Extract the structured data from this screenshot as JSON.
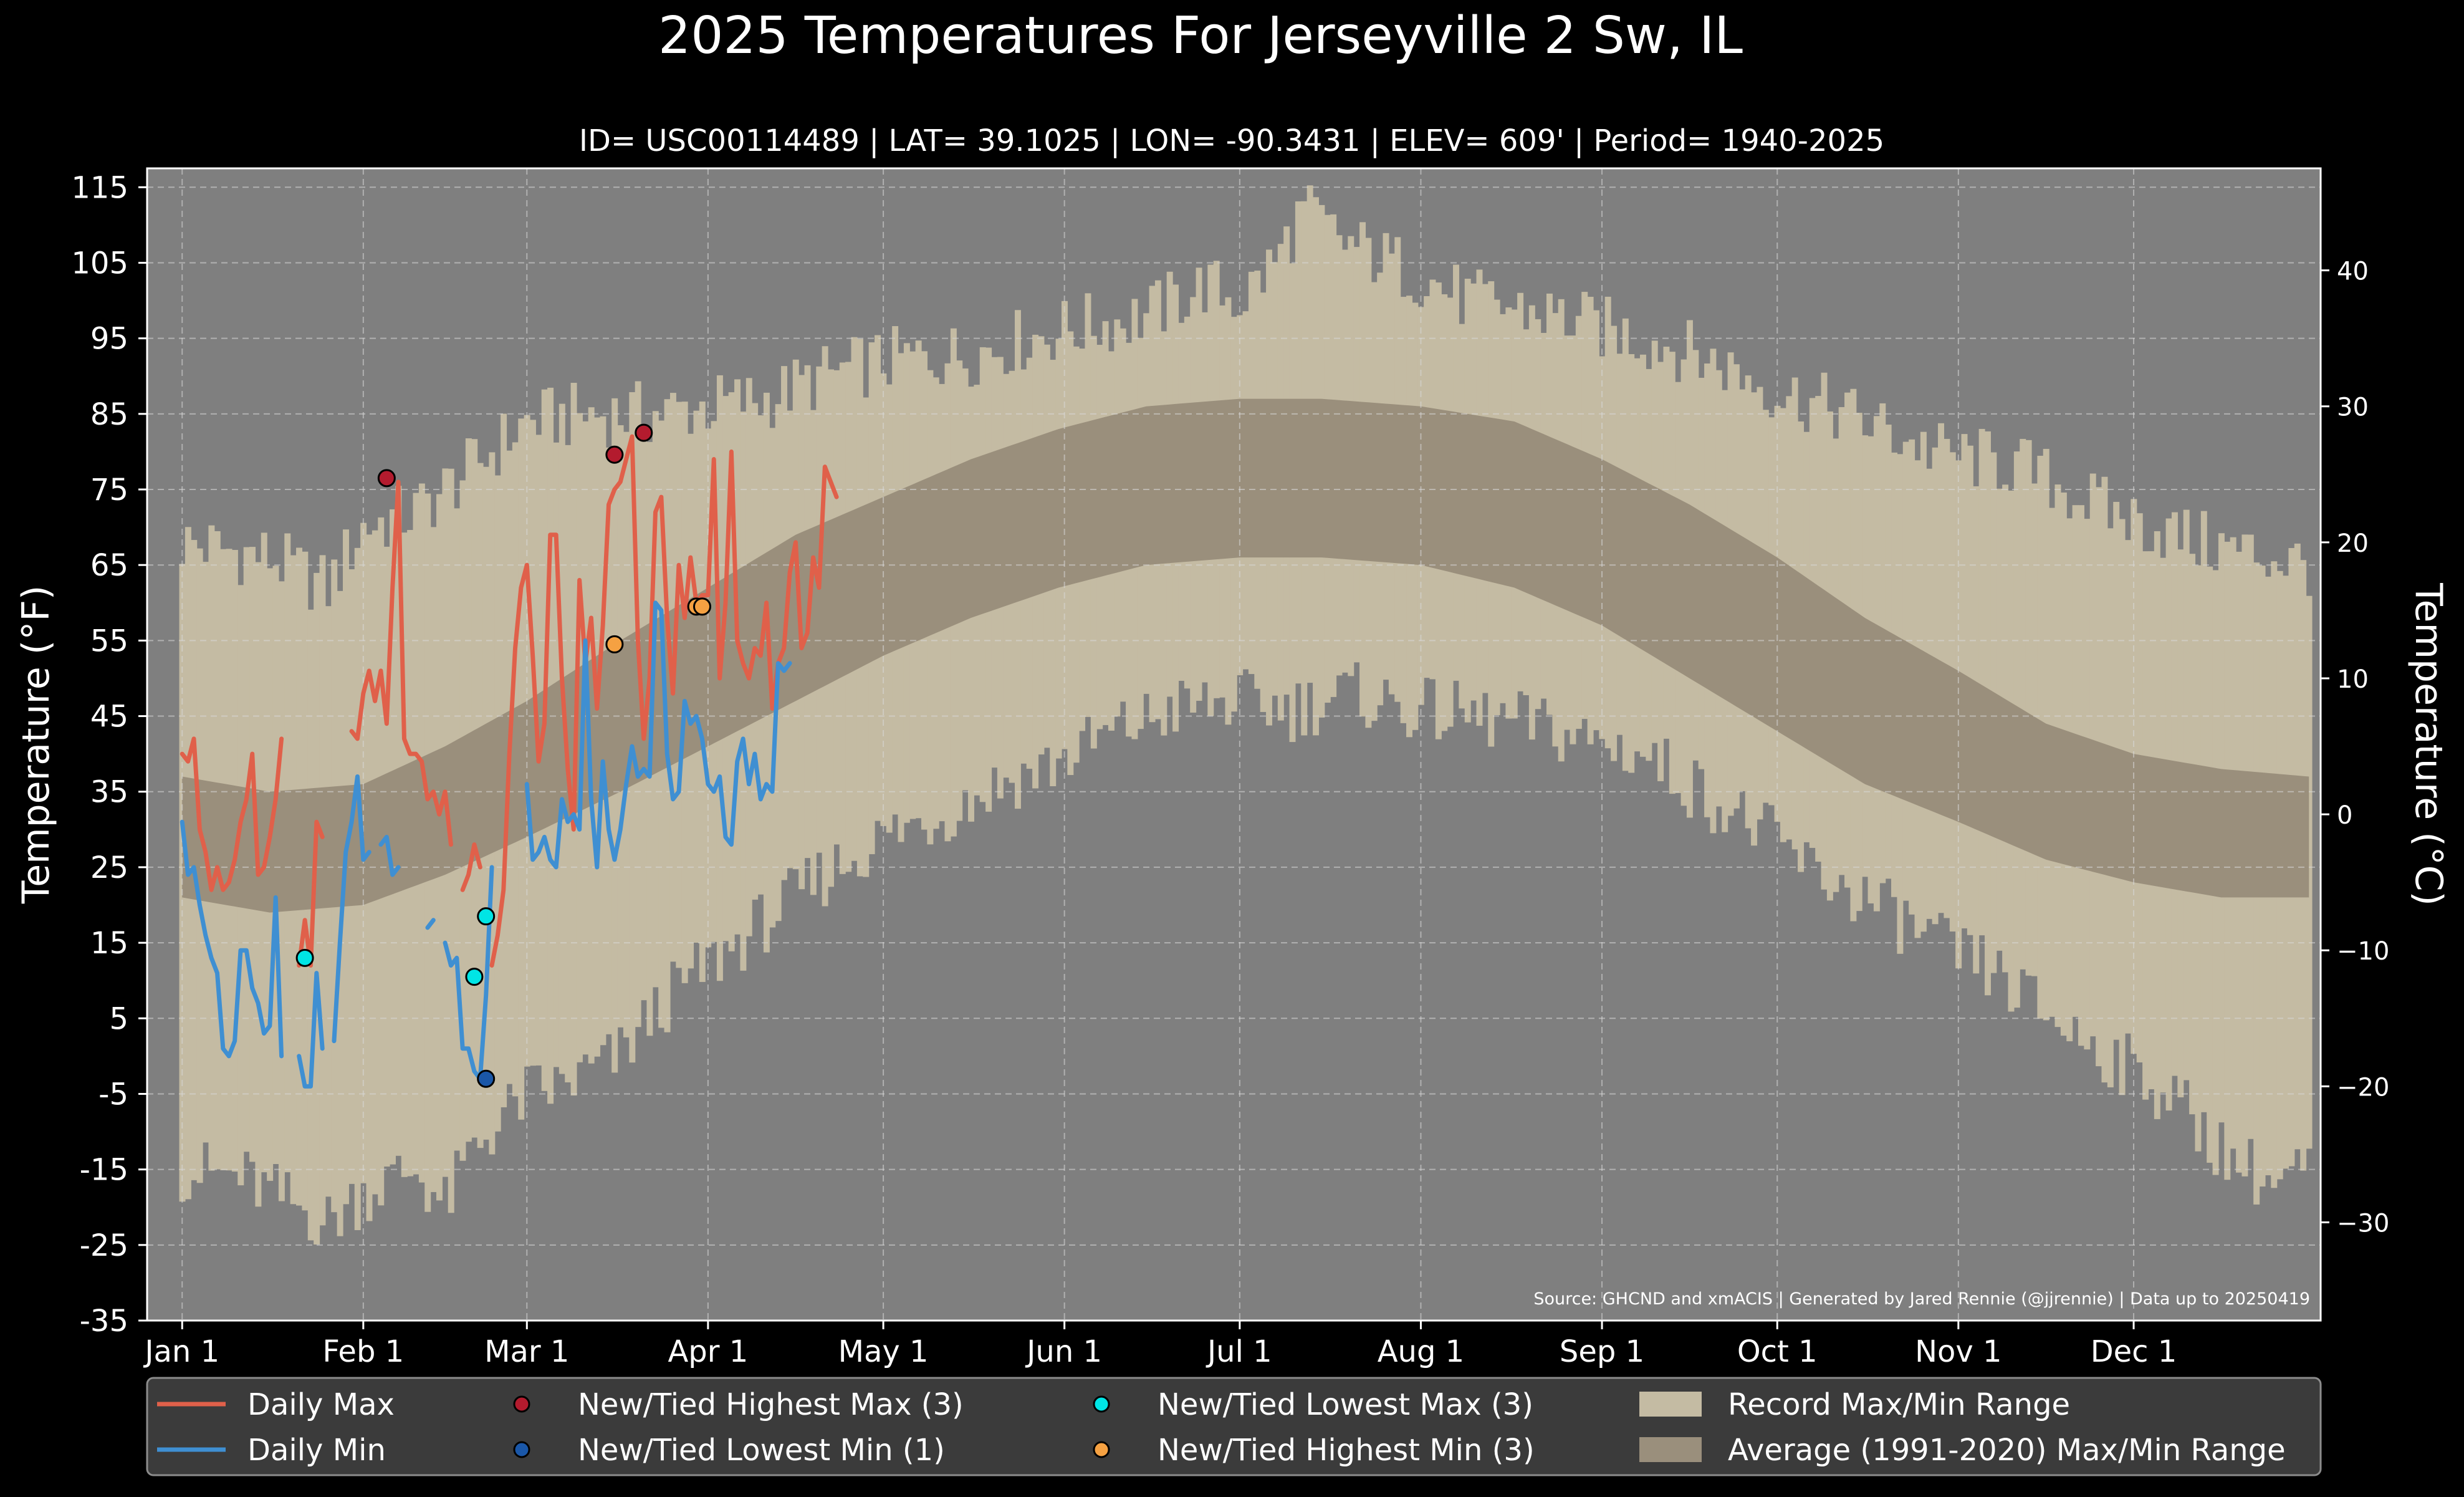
{
  "chart_data": {
    "type": "area",
    "title": "2025 Temperatures For Jerseyville 2 Sw, IL",
    "subtitle": "ID= USC00114489 | LAT= 39.1025 | LON= -90.3431 | ELEV= 609' | Period= 1940-2025",
    "ylabel": "Temperature ($^\\circ$F)",
    "ylabel_text": "Temperature (°F)",
    "ylabel_right": "Temperature (°C)",
    "source": "Source: GHCND and xmACIS | Generated by Jared Rennie (@jjrennie) | Data up to 20250419",
    "ylim": [
      -35,
      117.5
    ],
    "xlim": [
      -6,
      366
    ],
    "grid": true,
    "legend_position": "bottom",
    "yticks": [
      -35,
      -25,
      -15,
      -5,
      5,
      15,
      25,
      35,
      45,
      55,
      65,
      75,
      85,
      95,
      105,
      115
    ],
    "yticks_right": [
      -30,
      -20,
      -10,
      0,
      10,
      20,
      30,
      40
    ],
    "yticks_right_labels": [
      "−30",
      "−20",
      "−10",
      "0",
      "10",
      "20",
      "30",
      "40"
    ],
    "xticks": [
      {
        "day": 0,
        "label": "Jan 1"
      },
      {
        "day": 31,
        "label": "Feb 1"
      },
      {
        "day": 59,
        "label": "Mar 1"
      },
      {
        "day": 90,
        "label": "Apr 1"
      },
      {
        "day": 120,
        "label": "May 1"
      },
      {
        "day": 151,
        "label": "Jun 1"
      },
      {
        "day": 181,
        "label": "Jul 1"
      },
      {
        "day": 212,
        "label": "Aug 1"
      },
      {
        "day": 243,
        "label": "Sep 1"
      },
      {
        "day": 273,
        "label": "Oct 1"
      },
      {
        "day": 304,
        "label": "Nov 1"
      },
      {
        "day": 334,
        "label": "Dec 1"
      }
    ],
    "record_max_points": [
      [
        0,
        68
      ],
      [
        15,
        66
      ],
      [
        25,
        62
      ],
      [
        31,
        70
      ],
      [
        40,
        72
      ],
      [
        50,
        78
      ],
      [
        59,
        84
      ],
      [
        70,
        85
      ],
      [
        80,
        85
      ],
      [
        90,
        86
      ],
      [
        100,
        87
      ],
      [
        110,
        90
      ],
      [
        120,
        92
      ],
      [
        135,
        93
      ],
      [
        150,
        96
      ],
      [
        165,
        98
      ],
      [
        175,
        102
      ],
      [
        181,
        100
      ],
      [
        187,
        105
      ],
      [
        192,
        112
      ],
      [
        198,
        108
      ],
      [
        210,
        104
      ],
      [
        220,
        100
      ],
      [
        235,
        98
      ],
      [
        245,
        96
      ],
      [
        255,
        94
      ],
      [
        265,
        91
      ],
      [
        273,
        88
      ],
      [
        285,
        85
      ],
      [
        300,
        80
      ],
      [
        315,
        78
      ],
      [
        330,
        72
      ],
      [
        345,
        68
      ],
      [
        364,
        65
      ]
    ],
    "record_min_points": [
      [
        0,
        -15
      ],
      [
        10,
        -16
      ],
      [
        20,
        -20
      ],
      [
        25,
        -22
      ],
      [
        31,
        -18
      ],
      [
        40,
        -15
      ],
      [
        45,
        -20
      ],
      [
        50,
        -12
      ],
      [
        59,
        -5
      ],
      [
        65,
        -4
      ],
      [
        70,
        -2
      ],
      [
        75,
        0
      ],
      [
        80,
        5
      ],
      [
        85,
        9
      ],
      [
        90,
        12
      ],
      [
        95,
        15
      ],
      [
        100,
        18
      ],
      [
        110,
        24
      ],
      [
        120,
        29
      ],
      [
        130,
        32
      ],
      [
        140,
        36
      ],
      [
        150,
        39
      ],
      [
        160,
        43
      ],
      [
        170,
        46
      ],
      [
        181,
        47
      ],
      [
        190,
        46
      ],
      [
        200,
        48
      ],
      [
        210,
        46
      ],
      [
        220,
        45
      ],
      [
        230,
        44
      ],
      [
        240,
        42
      ],
      [
        250,
        40
      ],
      [
        260,
        35
      ],
      [
        270,
        30
      ],
      [
        280,
        24
      ],
      [
        290,
        20
      ],
      [
        300,
        15
      ],
      [
        310,
        11
      ],
      [
        320,
        5
      ],
      [
        330,
        0
      ],
      [
        340,
        -5
      ],
      [
        350,
        -13
      ],
      [
        358,
        -17
      ],
      [
        364,
        -15
      ]
    ],
    "normal_max_points": [
      [
        0,
        37
      ],
      [
        15,
        35
      ],
      [
        31,
        36
      ],
      [
        45,
        41
      ],
      [
        59,
        47
      ],
      [
        75,
        55
      ],
      [
        90,
        62
      ],
      [
        105,
        69
      ],
      [
        120,
        74
      ],
      [
        135,
        79
      ],
      [
        150,
        83
      ],
      [
        165,
        86
      ],
      [
        181,
        87
      ],
      [
        195,
        87
      ],
      [
        212,
        86
      ],
      [
        228,
        84
      ],
      [
        243,
        79
      ],
      [
        258,
        73
      ],
      [
        273,
        66
      ],
      [
        288,
        58
      ],
      [
        304,
        51
      ],
      [
        319,
        44
      ],
      [
        334,
        40
      ],
      [
        349,
        38
      ],
      [
        364,
        37
      ]
    ],
    "normal_min_points": [
      [
        0,
        21
      ],
      [
        15,
        19
      ],
      [
        31,
        20
      ],
      [
        45,
        24
      ],
      [
        59,
        29
      ],
      [
        75,
        35
      ],
      [
        90,
        41
      ],
      [
        105,
        47
      ],
      [
        120,
        53
      ],
      [
        135,
        58
      ],
      [
        150,
        62
      ],
      [
        165,
        65
      ],
      [
        181,
        66
      ],
      [
        195,
        66
      ],
      [
        212,
        65
      ],
      [
        228,
        62
      ],
      [
        243,
        57
      ],
      [
        258,
        50
      ],
      [
        273,
        43
      ],
      [
        288,
        36
      ],
      [
        304,
        31
      ],
      [
        319,
        26
      ],
      [
        334,
        23
      ],
      [
        349,
        21
      ],
      [
        364,
        21
      ]
    ],
    "series": [
      {
        "name": "Daily Max",
        "color": "#e0604a",
        "values": [
          40,
          39,
          42,
          30,
          27,
          22,
          25,
          22,
          23,
          26,
          31,
          34,
          40,
          24,
          25,
          29,
          34,
          42,
          null,
          null,
          12,
          18,
          12,
          31,
          29,
          null,
          null,
          null,
          null,
          43,
          42,
          48,
          51,
          47,
          51,
          44,
          62,
          76,
          42,
          40,
          40,
          39,
          34,
          35,
          32,
          35,
          28,
          null,
          22,
          24,
          28,
          25,
          null,
          12,
          16,
          22,
          40,
          54,
          62,
          65,
          53,
          39,
          44,
          69,
          69,
          50,
          38,
          30,
          63,
          52,
          58,
          46,
          57,
          73,
          75,
          76,
          79,
          82,
          55,
          42,
          50,
          72,
          74,
          58,
          48,
          65,
          58,
          66,
          60,
          61,
          61,
          79,
          50,
          60,
          80,
          55,
          52,
          50,
          54,
          53,
          60,
          46,
          52,
          54,
          64,
          68,
          54,
          56,
          66,
          62,
          78,
          76,
          74
        ]
      },
      {
        "name": "Daily Min",
        "color": "#3f8fd2",
        "values": [
          31,
          24,
          25,
          20,
          16,
          13,
          11,
          1,
          0,
          2,
          14,
          14,
          9,
          7,
          3,
          4,
          21,
          0,
          null,
          null,
          0,
          -4,
          -4,
          11,
          1,
          null,
          2,
          15,
          27,
          31,
          37,
          26,
          27,
          null,
          28,
          29,
          24,
          25,
          null,
          null,
          null,
          null,
          17,
          18,
          null,
          15,
          12,
          13,
          1,
          1,
          -2,
          -3,
          8,
          25,
          null,
          null,
          null,
          null,
          null,
          36,
          26,
          27,
          29,
          26,
          25,
          34,
          31,
          32,
          30,
          55,
          34,
          25,
          39,
          30,
          26,
          30,
          36,
          41,
          37,
          38,
          37,
          60,
          59,
          40,
          34,
          35,
          47,
          44,
          45,
          42,
          36,
          35,
          37,
          29,
          28,
          39,
          42,
          36,
          40,
          34,
          36,
          35,
          52,
          51,
          52
        ]
      }
    ],
    "markers": [
      {
        "name": "New/Tied Highest Max (3)",
        "color": "#b31b2e",
        "points": [
          [
            35,
            76.5
          ],
          [
            74,
            79.6
          ],
          [
            79,
            82.5
          ]
        ]
      },
      {
        "name": "New/Tied Lowest Min (1)",
        "color": "#1a57a8",
        "points": [
          [
            52,
            -3
          ]
        ]
      },
      {
        "name": "New/Tied Lowest Max (3)",
        "color": "#00e5e5",
        "points": [
          [
            21,
            13
          ],
          [
            50,
            10.5
          ],
          [
            52,
            18.5
          ]
        ]
      },
      {
        "name": "New/Tied Highest Min (3)",
        "color": "#f5a142",
        "points": [
          [
            74,
            54.5
          ],
          [
            88,
            59.5
          ],
          [
            89,
            59.5
          ]
        ]
      }
    ],
    "fills": [
      {
        "name": "Record Max/Min Range",
        "color": "#c4bba3"
      },
      {
        "name": "Average (1991-2020) Max/Min Range",
        "color": "#9a8f7c"
      }
    ]
  }
}
